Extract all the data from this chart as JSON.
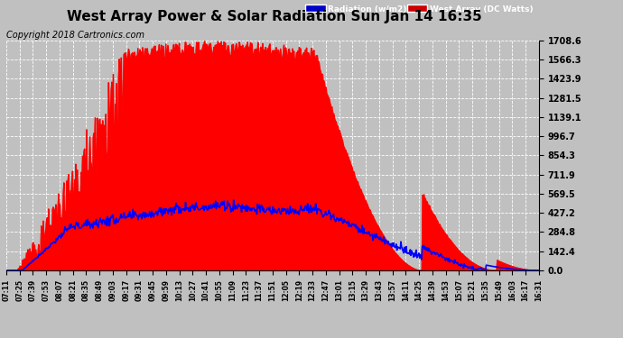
{
  "title": "West Array Power & Solar Radiation Sun Jan 14 16:35",
  "copyright": "Copyright 2018 Cartronics.com",
  "background_color": "#c0c0c0",
  "plot_bg_color": "#c0c0c0",
  "yticks": [
    0.0,
    142.4,
    284.8,
    427.2,
    569.5,
    711.9,
    854.3,
    996.7,
    1139.1,
    1281.5,
    1423.9,
    1566.3,
    1708.6
  ],
  "ymax": 1708.6,
  "ymin": 0.0,
  "x_labels": [
    "07:11",
    "07:25",
    "07:39",
    "07:53",
    "08:07",
    "08:21",
    "08:35",
    "08:49",
    "09:03",
    "09:17",
    "09:31",
    "09:45",
    "09:59",
    "10:13",
    "10:27",
    "10:41",
    "10:55",
    "11:09",
    "11:23",
    "11:37",
    "11:51",
    "12:05",
    "12:19",
    "12:33",
    "12:47",
    "13:01",
    "13:15",
    "13:29",
    "13:43",
    "13:57",
    "14:11",
    "14:25",
    "14:39",
    "14:53",
    "15:07",
    "15:21",
    "15:35",
    "15:49",
    "16:03",
    "16:17",
    "16:31"
  ],
  "fill_color": "#ff0000",
  "line_color_radiation": "#0000ff",
  "grid_color": "#ffffff",
  "title_fontsize": 11,
  "copyright_fontsize": 7,
  "legend_rad_bg": "#0000cc",
  "legend_west_bg": "#cc0000"
}
